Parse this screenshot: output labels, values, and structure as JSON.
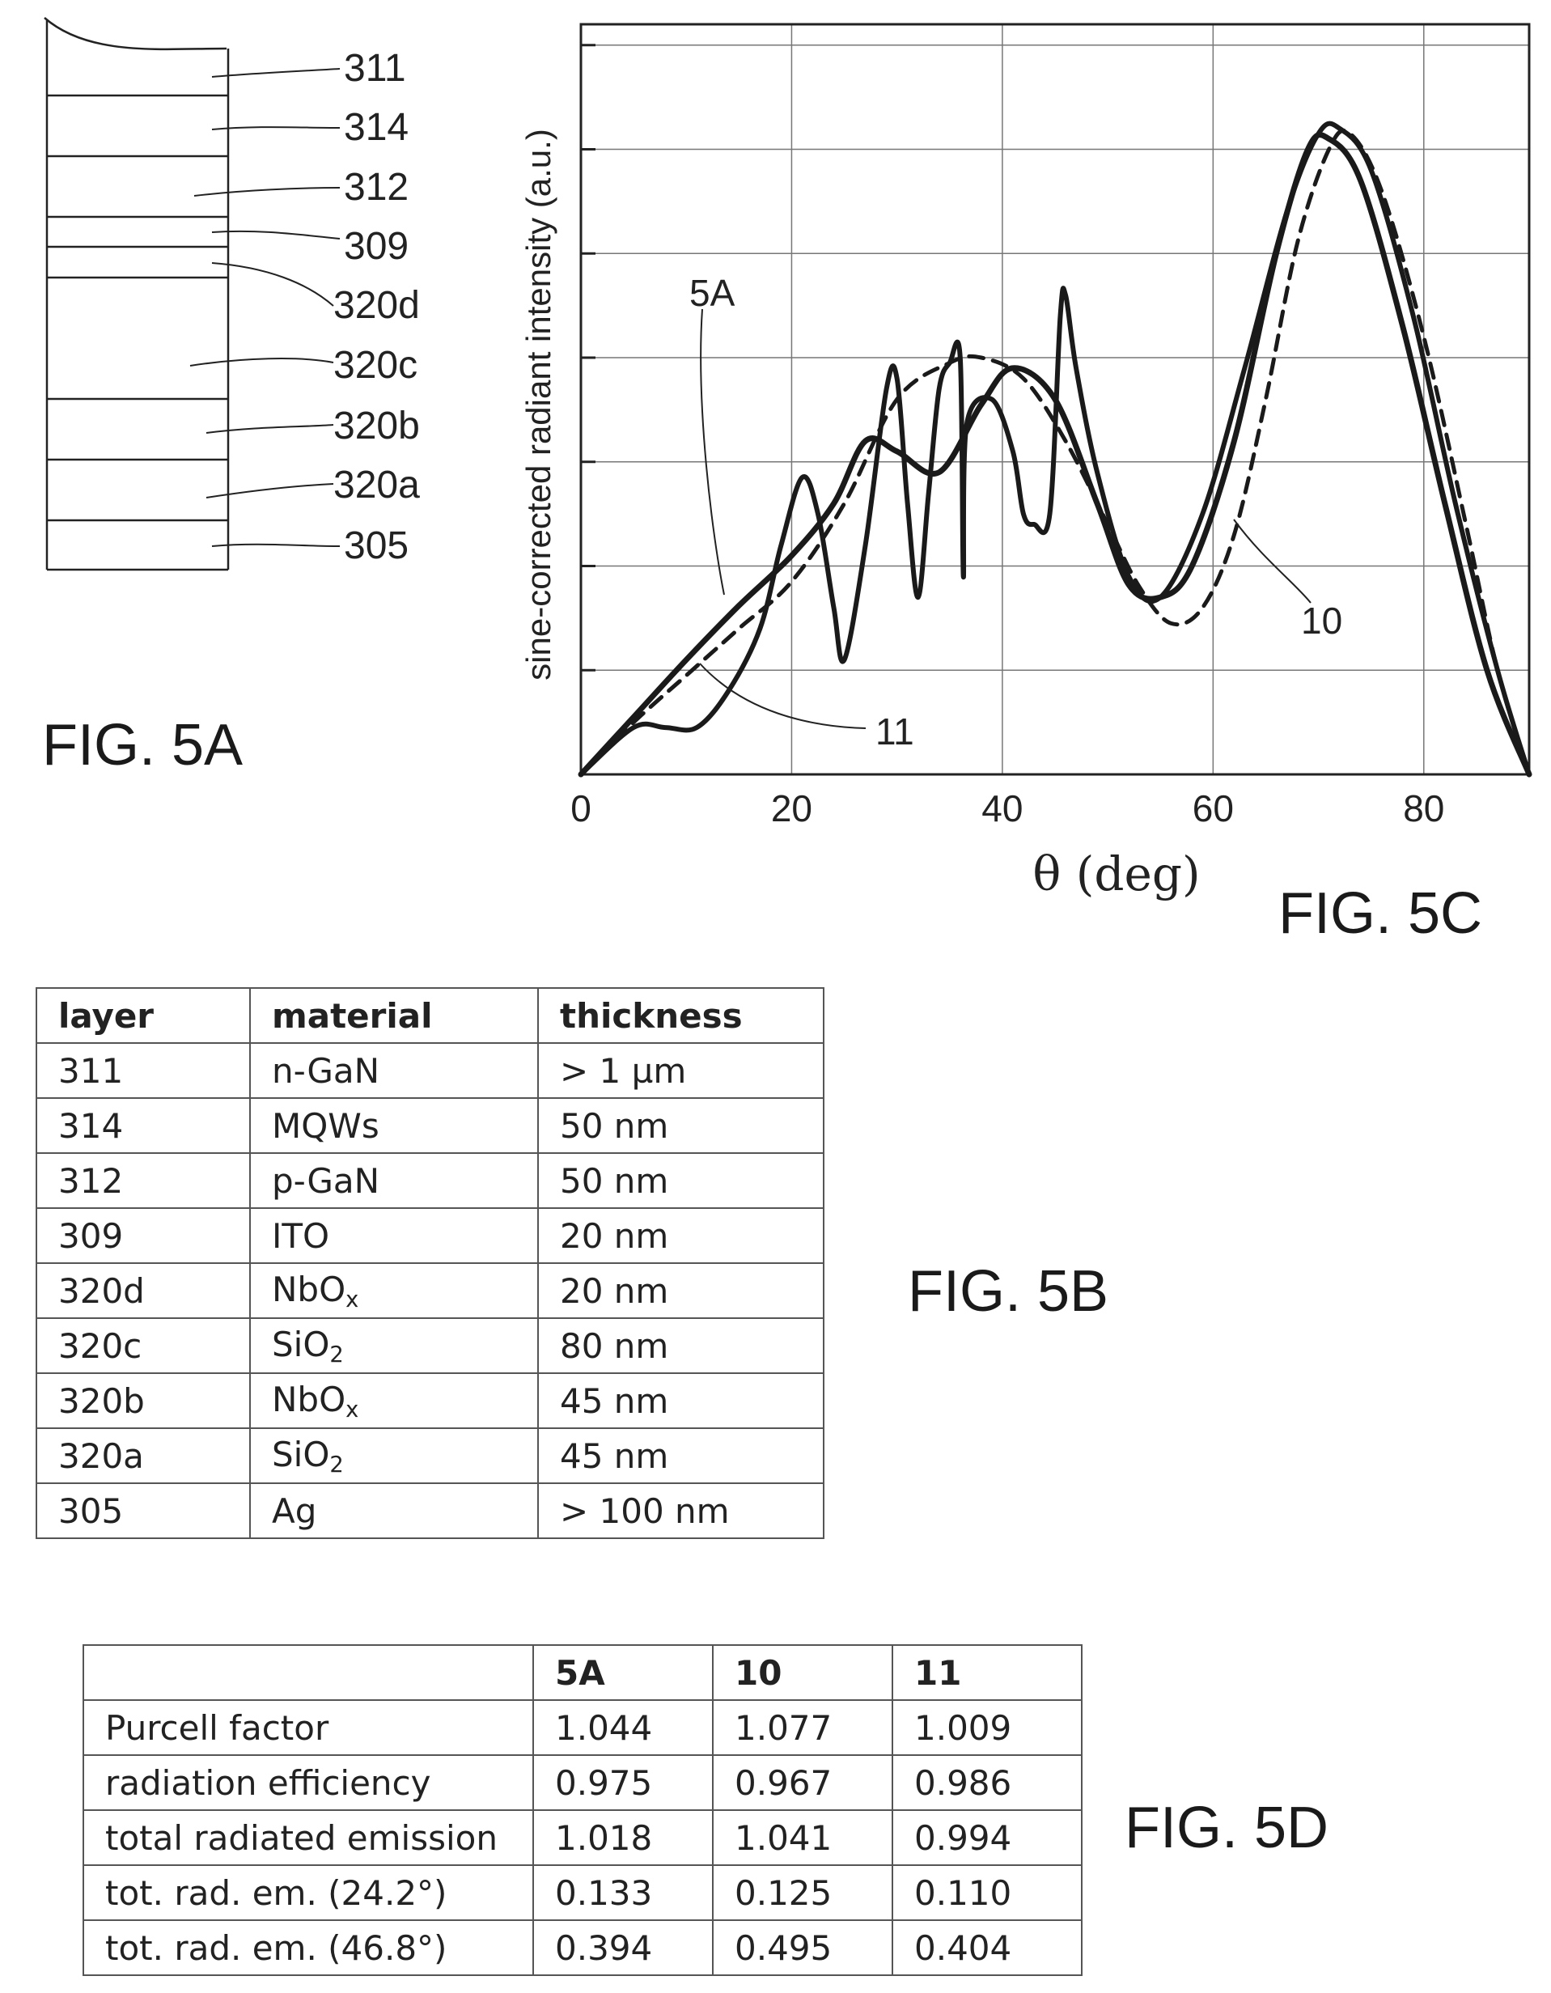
{
  "fig5a": {
    "label": "FIG. 5A",
    "layers": [
      "311",
      "314",
      "312",
      "309",
      "320d",
      "320c",
      "320b",
      "320a",
      "305"
    ]
  },
  "fig5b": {
    "label": "FIG. 5B",
    "headers": [
      "layer",
      "material",
      "thickness"
    ],
    "rows": [
      {
        "layer": "311",
        "material": "n-GaN",
        "sub": "",
        "thickness": "> 1 µm"
      },
      {
        "layer": "314",
        "material": "MQWs",
        "sub": "",
        "thickness": "50 nm"
      },
      {
        "layer": "312",
        "material": "p-GaN",
        "sub": "",
        "thickness": "50 nm"
      },
      {
        "layer": "309",
        "material": "ITO",
        "sub": "",
        "thickness": "20 nm"
      },
      {
        "layer": "320d",
        "material": "NbO",
        "sub": "x",
        "thickness": "20 nm"
      },
      {
        "layer": "320c",
        "material": "SiO",
        "sub": "2",
        "thickness": "80 nm"
      },
      {
        "layer": "320b",
        "material": "NbO",
        "sub": "x",
        "thickness": "45 nm"
      },
      {
        "layer": "320a",
        "material": "SiO",
        "sub": "2",
        "thickness": "45 nm"
      },
      {
        "layer": "305",
        "material": "Ag",
        "sub": "",
        "thickness": "> 100 nm"
      }
    ]
  },
  "fig5d": {
    "label": "FIG. 5D",
    "headers": [
      "",
      "5A",
      "10",
      "11"
    ],
    "rows": [
      {
        "name": "Purcell factor",
        "v5A": "1.044",
        "v10": "1.077",
        "v11": "1.009"
      },
      {
        "name": "radiation efficiency",
        "v5A": "0.975",
        "v10": "0.967",
        "v11": "0.986"
      },
      {
        "name": "total radiated emission",
        "v5A": "1.018",
        "v10": "1.041",
        "v11": "0.994"
      },
      {
        "name": "tot. rad. em. (24.2°)",
        "v5A": "0.133",
        "v10": "0.125",
        "v11": "0.110"
      },
      {
        "name": "tot. rad. em. (46.8°)",
        "v5A": "0.394",
        "v10": "0.495",
        "v11": "0.404"
      }
    ]
  },
  "chart_data": {
    "type": "line",
    "label": "FIG. 5C",
    "xlabel": "θ (deg)",
    "ylabel": "sine-corrected radiant intensity (a.u.)",
    "xlim": [
      0,
      90
    ],
    "ylim": [
      0,
      7.2
    ],
    "x_ticks": [
      "0",
      "20",
      "40",
      "60",
      "80"
    ],
    "grid": true,
    "series": [
      {
        "name": "5A",
        "style": "thick-solid",
        "points": [
          [
            0,
            0
          ],
          [
            5,
            0.55
          ],
          [
            10,
            1.1
          ],
          [
            15,
            1.62
          ],
          [
            20,
            2.1
          ],
          [
            24,
            2.6
          ],
          [
            27,
            3.2
          ],
          [
            30,
            3.1
          ],
          [
            34,
            2.9
          ],
          [
            38,
            3.55
          ],
          [
            41,
            3.9
          ],
          [
            45,
            3.6
          ],
          [
            49,
            2.6
          ],
          [
            52,
            1.82
          ],
          [
            55,
            1.7
          ],
          [
            58,
            2.0
          ],
          [
            62,
            3.2
          ],
          [
            66,
            5.0
          ],
          [
            69,
            6.0
          ],
          [
            71,
            6.1
          ],
          [
            74,
            5.7
          ],
          [
            78,
            4.3
          ],
          [
            82,
            2.6
          ],
          [
            86,
            1.0
          ],
          [
            90,
            0
          ]
        ]
      },
      {
        "name": "10",
        "style": "dashed",
        "points": [
          [
            0,
            0
          ],
          [
            5,
            0.5
          ],
          [
            10,
            0.95
          ],
          [
            15,
            1.4
          ],
          [
            20,
            1.85
          ],
          [
            25,
            2.6
          ],
          [
            30,
            3.6
          ],
          [
            35,
            3.95
          ],
          [
            38,
            4.0
          ],
          [
            42,
            3.8
          ],
          [
            46,
            3.2
          ],
          [
            50,
            2.4
          ],
          [
            53,
            1.8
          ],
          [
            56,
            1.45
          ],
          [
            59,
            1.6
          ],
          [
            62,
            2.3
          ],
          [
            65,
            3.6
          ],
          [
            68,
            5.1
          ],
          [
            71,
            6.0
          ],
          [
            73,
            6.15
          ],
          [
            76,
            5.6
          ],
          [
            80,
            4.2
          ],
          [
            84,
            2.4
          ],
          [
            87,
            1.0
          ],
          [
            90,
            0
          ]
        ]
      },
      {
        "name": "11",
        "style": "solid",
        "points": [
          [
            0,
            0
          ],
          [
            5,
            0.45
          ],
          [
            8,
            0.45
          ],
          [
            11,
            0.45
          ],
          [
            14,
            0.8
          ],
          [
            17,
            1.4
          ],
          [
            19,
            2.2
          ],
          [
            21,
            2.85
          ],
          [
            22.5,
            2.5
          ],
          [
            24,
            1.6
          ],
          [
            25,
            1.1
          ],
          [
            27,
            2.2
          ],
          [
            29,
            3.7
          ],
          [
            30,
            3.8
          ],
          [
            31,
            2.6
          ],
          [
            32,
            1.7
          ],
          [
            33,
            2.7
          ],
          [
            34,
            3.7
          ],
          [
            35,
            3.95
          ],
          [
            36,
            4.0
          ],
          [
            36.3,
            1.9
          ],
          [
            36.6,
            3.35
          ],
          [
            39,
            3.6
          ],
          [
            41,
            3.1
          ],
          [
            42,
            2.5
          ],
          [
            43,
            2.4
          ],
          [
            44.5,
            2.5
          ],
          [
            45.5,
            4.4
          ],
          [
            46,
            4.6
          ],
          [
            47,
            3.9
          ],
          [
            49,
            2.9
          ],
          [
            52,
            1.9
          ],
          [
            55,
            1.7
          ],
          [
            59,
            2.5
          ],
          [
            63,
            3.9
          ],
          [
            67,
            5.4
          ],
          [
            70,
            6.15
          ],
          [
            72,
            6.2
          ],
          [
            75,
            5.8
          ],
          [
            79,
            4.4
          ],
          [
            83,
            2.6
          ],
          [
            87,
            1.0
          ],
          [
            90,
            0
          ]
        ]
      }
    ]
  }
}
